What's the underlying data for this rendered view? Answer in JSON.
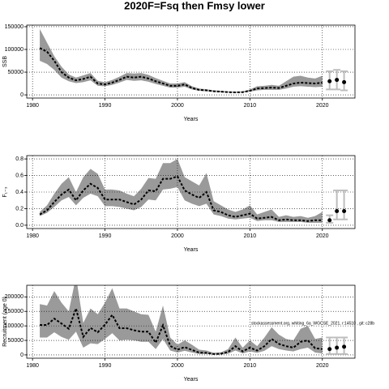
{
  "title": "2020F=Fsq then Fmsy lower",
  "chart_data": [
    {
      "type": "line",
      "y_label": "SSB",
      "x_label": "Years",
      "xlim": [
        1979.2,
        2024.5
      ],
      "xticks": [
        1980,
        1990,
        2000,
        2010,
        2020
      ],
      "ylim": [
        -7000,
        153500
      ],
      "yticks": [
        0,
        50000,
        100000,
        150000
      ],
      "grid": true,
      "x": [
        1981,
        1982,
        1983,
        1984,
        1985,
        1986,
        1987,
        1988,
        1989,
        1990,
        1991,
        1992,
        1993,
        1994,
        1995,
        1996,
        1997,
        1998,
        1999,
        2000,
        2001,
        2002,
        2003,
        2004,
        2005,
        2006,
        2007,
        2008,
        2009,
        2010,
        2011,
        2012,
        2013,
        2014,
        2015,
        2016,
        2017,
        2018,
        2019,
        2020
      ],
      "values": [
        103000,
        95000,
        75000,
        50000,
        38000,
        32000,
        35000,
        40000,
        25000,
        23000,
        27000,
        33000,
        40000,
        38000,
        40000,
        36000,
        30000,
        25000,
        20000,
        20000,
        23000,
        15000,
        11000,
        10000,
        8000,
        7000,
        6000,
        5500,
        6000,
        9000,
        14000,
        15000,
        16000,
        15000,
        20000,
        25000,
        27000,
        26000,
        25000,
        27000
      ],
      "low": [
        75000,
        68000,
        55000,
        38000,
        30000,
        26000,
        28000,
        32000,
        20000,
        19000,
        22000,
        27000,
        33000,
        31000,
        32000,
        29000,
        24000,
        20000,
        16000,
        16000,
        18000,
        12000,
        9000,
        8000,
        6500,
        5500,
        5000,
        4500,
        5000,
        7000,
        10000,
        11000,
        11000,
        11000,
        14000,
        18000,
        19000,
        18000,
        17000,
        18000
      ],
      "high": [
        145000,
        115000,
        85000,
        62000,
        45000,
        38000,
        43000,
        48000,
        31000,
        28000,
        33000,
        40000,
        48000,
        47000,
        48000,
        44000,
        37000,
        31000,
        25000,
        25000,
        28000,
        19000,
        14000,
        12500,
        10000,
        9000,
        7500,
        7000,
        7500,
        12000,
        19000,
        20000,
        22000,
        20000,
        30000,
        40000,
        42000,
        38000,
        36000,
        42000
      ],
      "forecast": {
        "x": [
          2021,
          2022,
          2023
        ],
        "values": [
          30000,
          33000,
          28000
        ],
        "low": [
          12000,
          12000,
          10000
        ],
        "high": [
          52000,
          55000,
          52000
        ]
      },
      "color": "#000000",
      "band_color": "#9a9a9a",
      "forecast_color": "#bdbdbd"
    },
    {
      "type": "line",
      "y_label": "F₁₋₃",
      "x_label": "Years",
      "xlim": [
        1979.2,
        2024.5
      ],
      "xticks": [
        1980,
        1990,
        2000,
        2010,
        2020
      ],
      "ylim": [
        -0.04,
        0.84
      ],
      "yticks": [
        {
          "value": 0,
          "label": "0.0"
        },
        0.2,
        0.4,
        0.6,
        0.8
      ],
      "grid": true,
      "x": [
        1981,
        1982,
        1983,
        1984,
        1985,
        1986,
        1987,
        1988,
        1989,
        1990,
        1991,
        1992,
        1993,
        1994,
        1995,
        1996,
        1997,
        1998,
        1999,
        2000,
        2001,
        2002,
        2003,
        2004,
        2005,
        2006,
        2007,
        2008,
        2009,
        2010,
        2011,
        2012,
        2013,
        2014,
        2015,
        2016,
        2017,
        2018,
        2019,
        2020
      ],
      "values": [
        0.13,
        0.18,
        0.28,
        0.37,
        0.43,
        0.3,
        0.42,
        0.5,
        0.45,
        0.31,
        0.31,
        0.31,
        0.28,
        0.25,
        0.31,
        0.42,
        0.41,
        0.56,
        0.56,
        0.59,
        0.42,
        0.37,
        0.33,
        0.4,
        0.18,
        0.16,
        0.12,
        0.1,
        0.12,
        0.14,
        0.08,
        0.09,
        0.1,
        0.06,
        0.07,
        0.06,
        0.06,
        0.05,
        0.06,
        0.06
      ],
      "low": [
        0.11,
        0.15,
        0.22,
        0.3,
        0.34,
        0.24,
        0.33,
        0.38,
        0.35,
        0.23,
        0.23,
        0.22,
        0.2,
        0.18,
        0.22,
        0.31,
        0.3,
        0.43,
        0.44,
        0.46,
        0.3,
        0.26,
        0.23,
        0.26,
        0.13,
        0.11,
        0.08,
        0.07,
        0.08,
        0.09,
        0.05,
        0.06,
        0.06,
        0.04,
        0.04,
        0.04,
        0.04,
        0.03,
        0.03,
        0.03
      ],
      "high": [
        0.16,
        0.24,
        0.38,
        0.5,
        0.58,
        0.4,
        0.58,
        0.68,
        0.62,
        0.43,
        0.43,
        0.42,
        0.38,
        0.35,
        0.44,
        0.57,
        0.56,
        0.75,
        0.75,
        0.8,
        0.58,
        0.53,
        0.48,
        0.63,
        0.29,
        0.24,
        0.19,
        0.16,
        0.19,
        0.24,
        0.13,
        0.16,
        0.19,
        0.1,
        0.12,
        0.1,
        0.11,
        0.09,
        0.11,
        0.16
      ],
      "forecast": {
        "x": [
          2021,
          2022,
          2023
        ],
        "values": [
          0.06,
          0.17,
          0.17
        ],
        "low": [
          0.03,
          0.07,
          0.07
        ],
        "high": [
          0.12,
          0.42,
          0.42
        ]
      },
      "color": "#000000",
      "band_color": "#9a9a9a",
      "forecast_color": "#bdbdbd"
    },
    {
      "type": "line",
      "y_label": "Recruitment (age 0)",
      "x_label": "Years",
      "annotation": "stockassessment.org, whiting_6a_WGCSE_2021, r:14510 , git: c28b",
      "xlim": [
        1979.2,
        2024.5
      ],
      "xticks": [
        1980,
        1990,
        2000,
        2010,
        2020
      ],
      "ylim": [
        -11400,
        240000
      ],
      "yticks": [
        0,
        50000,
        100000,
        150000,
        200000
      ],
      "grid": true,
      "x": [
        1981,
        1982,
        1983,
        1984,
        1985,
        1986,
        1987,
        1988,
        1989,
        1990,
        1991,
        1992,
        1993,
        1994,
        1995,
        1996,
        1997,
        1998,
        1999,
        2000,
        2001,
        2002,
        2003,
        2004,
        2005,
        2006,
        2007,
        2008,
        2009,
        2010,
        2011,
        2012,
        2013,
        2014,
        2015,
        2016,
        2017,
        2018,
        2019,
        2020
      ],
      "values": [
        103000,
        103000,
        125000,
        108000,
        90000,
        160000,
        62000,
        93000,
        78000,
        104000,
        138000,
        92000,
        92000,
        85000,
        80000,
        80000,
        42000,
        102000,
        31000,
        18000,
        27000,
        17000,
        8000,
        7000,
        3000,
        4000,
        10000,
        30000,
        12000,
        25000,
        15000,
        30000,
        55000,
        38000,
        30000,
        25000,
        45000,
        50000,
        23000,
        20000
      ],
      "low": [
        60000,
        60000,
        78000,
        62000,
        52000,
        80000,
        25000,
        40000,
        37000,
        55000,
        75000,
        50000,
        52000,
        50000,
        45000,
        45000,
        20000,
        55000,
        15000,
        8000,
        14000,
        8000,
        3000,
        3000,
        1000,
        1500,
        4000,
        15000,
        5000,
        12000,
        7000,
        14000,
        30000,
        20000,
        15000,
        12000,
        20000,
        25000,
        8000,
        5000
      ],
      "high": [
        175000,
        170000,
        220000,
        180000,
        150000,
        270000,
        110000,
        160000,
        140000,
        180000,
        230000,
        160000,
        160000,
        150000,
        140000,
        138000,
        80000,
        170000,
        60000,
        35000,
        50000,
        35000,
        18000,
        15000,
        7000,
        9000,
        20000,
        60000,
        25000,
        50000,
        30000,
        60000,
        95000,
        70000,
        55000,
        50000,
        90000,
        100000,
        55000,
        60000
      ],
      "forecast": {
        "x": [
          2021,
          2022,
          2023
        ],
        "values": [
          20000,
          25000,
          28000
        ],
        "low": [
          3000,
          3000,
          3000
        ],
        "high": [
          60000,
          60000,
          60000
        ]
      },
      "color": "#000000",
      "band_color": "#9a9a9a",
      "forecast_color": "#bdbdbd"
    }
  ]
}
